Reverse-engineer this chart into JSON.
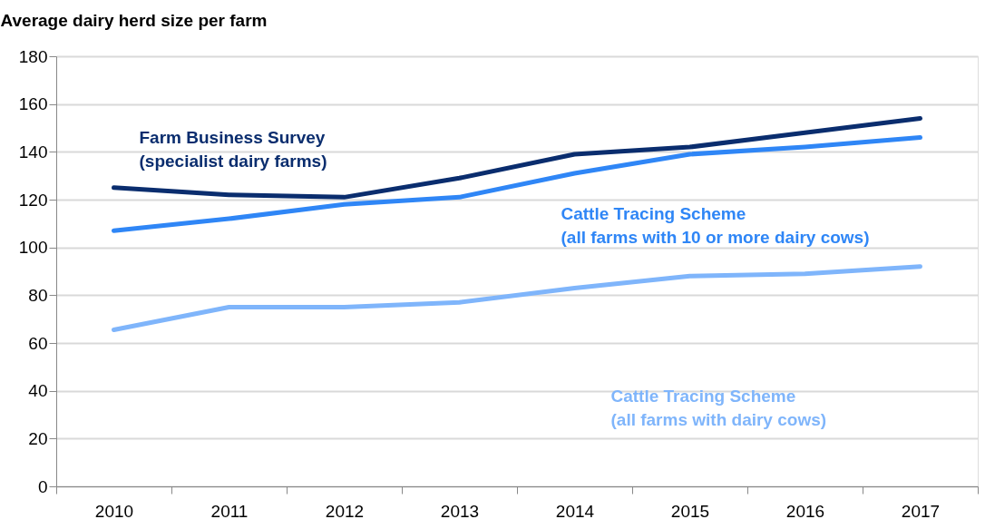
{
  "chart_data": {
    "type": "line",
    "ylabel": "Average dairy herd size per farm",
    "categories": [
      "2010",
      "2011",
      "2012",
      "2013",
      "2014",
      "2015",
      "2016",
      "2017"
    ],
    "series": [
      {
        "name": "Farm Business Survey\n(specialist dairy farms)",
        "color": "#0a2d6e",
        "values": [
          125,
          122,
          121,
          129,
          139,
          142,
          148,
          154
        ]
      },
      {
        "name": "Cattle Tracing Scheme\n(all farms with 10 or more dairy cows)",
        "color": "#2f86f6",
        "values": [
          107,
          112,
          118,
          121,
          131,
          139,
          142,
          146
        ]
      },
      {
        "name": "Cattle Tracing Scheme\n(all farms with dairy cows)",
        "color": "#7fb5fb",
        "values": [
          65.5,
          75,
          75,
          77,
          83,
          88,
          89,
          92
        ]
      }
    ],
    "ylim": [
      0,
      180
    ],
    "yticks": [
      0,
      20,
      40,
      60,
      80,
      100,
      120,
      140,
      160,
      180
    ],
    "grid": "y",
    "marker": "none",
    "line_style": "solid"
  }
}
